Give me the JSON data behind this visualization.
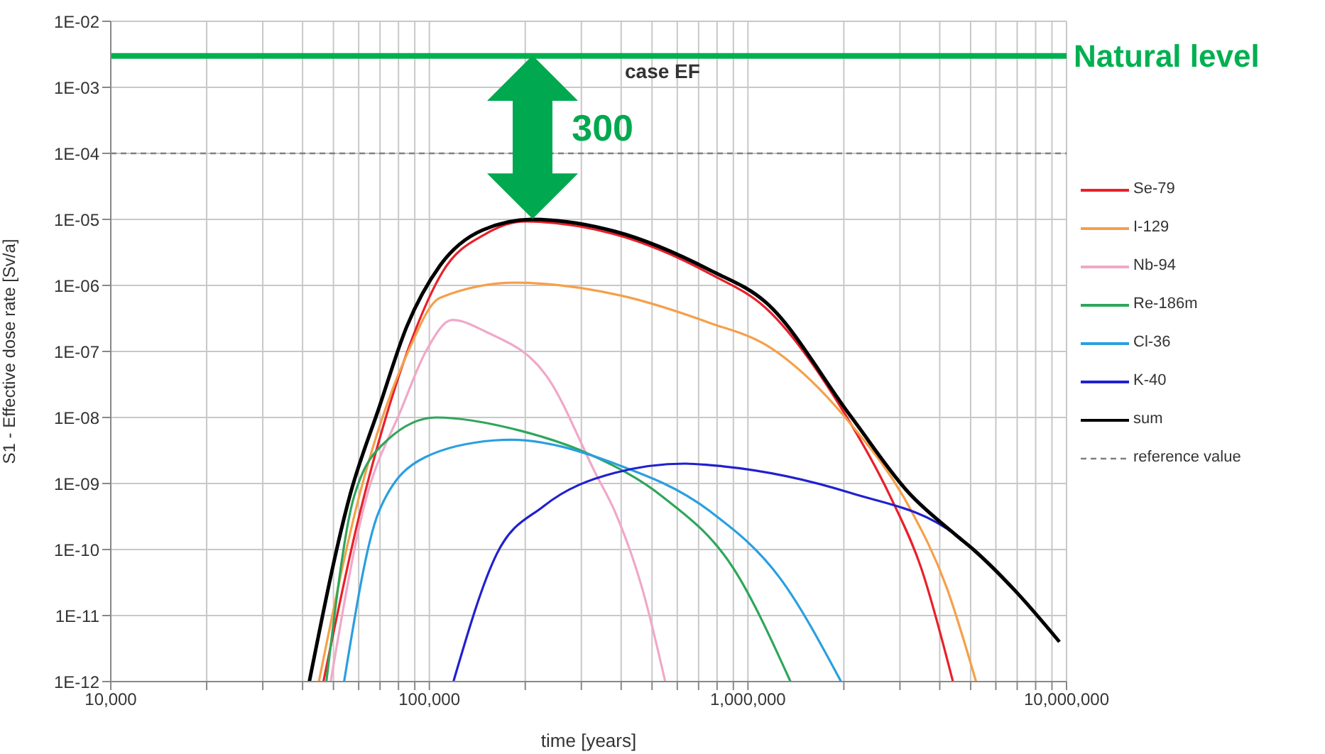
{
  "chart_data": {
    "type": "line",
    "title": "case EF",
    "xlabel": "time [years]",
    "ylabel": "S1 - Effective dose rate [Sv/a]",
    "log": "xy",
    "grid": true,
    "legend": "right",
    "line_style": "solid",
    "marker": "none",
    "xlim": [
      10000,
      10000000
    ],
    "xticks": [
      {
        "value": 10000,
        "label": "10,000"
      },
      {
        "value": 20000,
        "label": null
      },
      {
        "value": 30000,
        "label": null
      },
      {
        "value": 40000,
        "label": null
      },
      {
        "value": 50000,
        "label": null
      },
      {
        "value": 60000,
        "label": null
      },
      {
        "value": 70000,
        "label": null
      },
      {
        "value": 80000,
        "label": null
      },
      {
        "value": 90000,
        "label": null
      },
      {
        "value": 100000,
        "label": "100,000"
      },
      {
        "value": 200000,
        "label": null
      },
      {
        "value": 300000,
        "label": null
      },
      {
        "value": 400000,
        "label": null
      },
      {
        "value": 500000,
        "label": null
      },
      {
        "value": 600000,
        "label": null
      },
      {
        "value": 700000,
        "label": null
      },
      {
        "value": 800000,
        "label": null
      },
      {
        "value": 900000,
        "label": null
      },
      {
        "value": 1000000,
        "label": "1,000,000"
      },
      {
        "value": 2000000,
        "label": null
      },
      {
        "value": 3000000,
        "label": null
      },
      {
        "value": 4000000,
        "label": null
      },
      {
        "value": 5000000,
        "label": null
      },
      {
        "value": 6000000,
        "label": null
      },
      {
        "value": 7000000,
        "label": null
      },
      {
        "value": 8000000,
        "label": null
      },
      {
        "value": 9000000,
        "label": null
      },
      {
        "value": 10000000,
        "label": "10,000,000"
      }
    ],
    "ylim": [
      1e-12,
      0.01
    ],
    "yticks": [
      {
        "value": 1e-12,
        "label": "1E-12"
      },
      {
        "value": 1e-11,
        "label": "1E-11"
      },
      {
        "value": 1e-10,
        "label": "1E-10"
      },
      {
        "value": 1e-09,
        "label": "1E-09"
      },
      {
        "value": 1e-08,
        "label": "1E-08"
      },
      {
        "value": 1e-07,
        "label": "1E-07"
      },
      {
        "value": 1e-06,
        "label": "1E-06"
      },
      {
        "value": 1e-05,
        "label": "1E-05"
      },
      {
        "value": 0.0001,
        "label": "1E-04"
      },
      {
        "value": 0.001,
        "label": "1E-03"
      },
      {
        "value": 0.01,
        "label": "1E-02"
      }
    ],
    "series": [
      {
        "name": "Se-79",
        "color": "#e8202a",
        "x": [
          46500,
          60000,
          72000,
          88000,
          110000,
          150000,
          200000,
          380000,
          760000,
          1140000,
          2000000,
          2800000,
          3500000,
          4400000
        ],
        "values": [
          1e-12,
          3e-10,
          8e-09,
          1.5e-07,
          1.6e-06,
          6e-06,
          9.3e-06,
          6e-06,
          1.5e-06,
          4.5e-07,
          1.2e-08,
          6.3e-10,
          5.2e-11,
          1e-12
        ]
      },
      {
        "name": "I-129",
        "color": "#f5a04a",
        "x": [
          45000,
          60000,
          85000,
          108000,
          186000,
          400000,
          760000,
          1140000,
          2100000,
          3200000,
          4200000,
          5200000
        ],
        "values": [
          1e-12,
          6e-10,
          9e-08,
          6.5e-07,
          1.1e-06,
          7e-07,
          2.7e-07,
          1.25e-07,
          8e-09,
          4.5e-10,
          2.7e-11,
          1e-12
        ]
      },
      {
        "name": "Nb-94",
        "color": "#f0a8c8",
        "x": [
          49000,
          62000,
          82000,
          97500,
          118000,
          150000,
          237000,
          333000,
          382000,
          470000,
          550000
        ],
        "values": [
          1e-12,
          4e-10,
          1.4e-08,
          1e-07,
          3e-07,
          2e-07,
          3.8e-08,
          1.4e-09,
          3.8e-10,
          2.2e-11,
          1e-12
        ]
      },
      {
        "name": "Re-186m",
        "color": "#2ea65a",
        "x": [
          47500,
          58000,
          74000,
          105000,
          193000,
          322000,
          540000,
          900000,
          1360000
        ],
        "values": [
          1e-12,
          6.3e-10,
          4.6e-09,
          1e-08,
          6.3e-09,
          2.7e-09,
          6.3e-10,
          5.2e-11,
          1e-12
        ]
      },
      {
        "name": "Cl-36",
        "color": "#2a9fe0",
        "x": [
          54000,
          69500,
          97000,
          160000,
          180000,
          382000,
          760000,
          1260000,
          1960000
        ],
        "values": [
          1e-12,
          3.8e-10,
          2.5e-09,
          4.5e-09,
          4.6e-09,
          2e-09,
          3.8e-10,
          3.7e-11,
          1e-12
        ]
      },
      {
        "name": "K-40",
        "color": "#2020d0",
        "x": [
          119000,
          163000,
          228000,
          382000,
          635000,
          760000,
          2100000,
          4500000,
          5100000
        ],
        "values": [
          1e-12,
          8.7e-11,
          4.5e-10,
          1.45e-09,
          2e-09,
          1.9e-09,
          7.2e-10,
          1.65e-10,
          1e-10
        ]
      },
      {
        "name": "sum",
        "color": "#000000",
        "x": [
          42000,
          56600,
          69500,
          85000,
          108000,
          147000,
          210000,
          381000,
          760000,
          1140000,
          2100000,
          3200000,
          4500000,
          5100000,
          7000000,
          9500000
        ],
        "values": [
          1e-12,
          7.2e-10,
          1.4e-08,
          2.4e-07,
          2e-06,
          6.9e-06,
          1e-05,
          6.6e-06,
          1.7e-06,
          5.5e-07,
          1.05e-08,
          7.2e-10,
          1.65e-10,
          1e-10,
          2.2e-11,
          4e-12
        ]
      }
    ],
    "ref_lines": [
      {
        "axis": "y",
        "value": 0.003,
        "label": "Natural level",
        "color": "#00b050",
        "line_style": "solid"
      },
      {
        "axis": "y",
        "value": 0.0001,
        "label": "reference value",
        "color": "#808080",
        "line_style": "dashed"
      }
    ],
    "annotations": [
      "300"
    ]
  }
}
